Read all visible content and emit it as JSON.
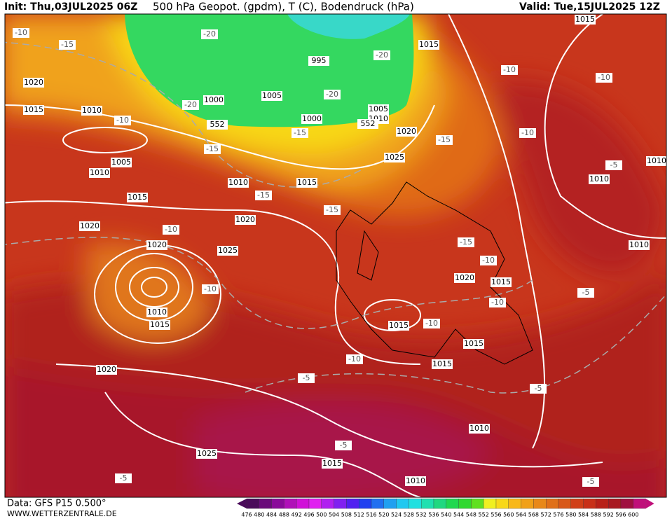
{
  "header": {
    "init": "Init: Thu,03JUL2025 06Z",
    "title": "500 hPa Geopot. (gpdm), T (C), Bodendruck (hPa)",
    "valid": "Valid: Tue,15JUL2025 12Z"
  },
  "footer": {
    "data_source": "Data: GFS P15 0.500°",
    "website": "WWW.WETTERZENTRALE.DE"
  },
  "legend": {
    "values": [
      476,
      480,
      484,
      488,
      492,
      496,
      500,
      504,
      508,
      512,
      516,
      520,
      524,
      528,
      532,
      536,
      540,
      544,
      548,
      552,
      556,
      560,
      564,
      568,
      572,
      576,
      580,
      584,
      588,
      592,
      596,
      600
    ],
    "colors": [
      "#4a0a5a",
      "#6a0a7a",
      "#8a0a9a",
      "#b010b8",
      "#d010d8",
      "#e020f0",
      "#b020f0",
      "#8020f0",
      "#5020f0",
      "#2040f0",
      "#2070f0",
      "#20a0f0",
      "#20c8f0",
      "#20e0e0",
      "#20e0b0",
      "#20d880",
      "#20d850",
      "#30d830",
      "#60e020",
      "#f0f020",
      "#f8d818",
      "#f8b818",
      "#f0a018",
      "#e88818",
      "#e07018",
      "#d85818",
      "#d04018",
      "#c83018",
      "#b82018",
      "#a81820",
      "#a01040",
      "#c0107a"
    ]
  },
  "isobar_labels": [
    "1015",
    "1015",
    "995",
    "1005",
    "1000",
    "1005",
    "1010",
    "1000",
    "1020",
    "1025",
    "1020",
    "1015",
    "1010",
    "1005",
    "1010",
    "1015",
    "1020",
    "1020",
    "1020",
    "1010",
    "1015",
    "1025",
    "1010",
    "1015",
    "1020",
    "1025",
    "1015",
    "1010",
    "1010",
    "1015",
    "1015",
    "1015",
    "1020",
    "1015",
    "1010",
    "1010",
    "1010",
    "552",
    "552"
  ],
  "temperature_labels": [
    "-10",
    "-15",
    "-20",
    "-20",
    "-20",
    "-20",
    "-15",
    "-15",
    "-15",
    "-10",
    "-15",
    "-15",
    "-10",
    "-10",
    "-10",
    "-10",
    "-10",
    "-5",
    "-15",
    "-10",
    "-10",
    "-10",
    "-5",
    "-10",
    "-5",
    "-5",
    "-5",
    "-5",
    "-5"
  ]
}
